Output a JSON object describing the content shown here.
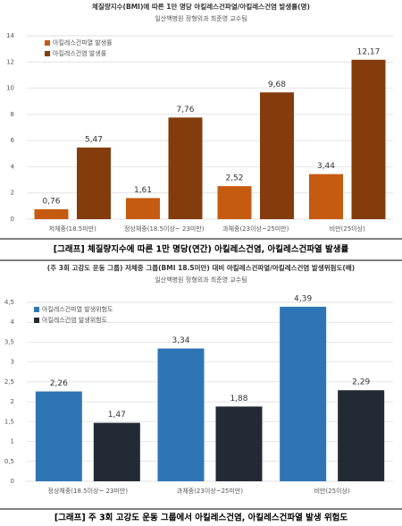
{
  "chart_data": [
    {
      "type": "bar",
      "title": "체질량지수(BMI)에 따른 1만 명당 아킬레스건파열/아킬레스건염 발생률(명)",
      "subtitle": "일산백병원 정형외과 최준영 교수팀",
      "categories": [
        "저체중(18.5미만)",
        "정상체중(18.5이상~ 23미만)",
        "과체중(23이상~25미만)",
        "비만(25이상)"
      ],
      "series": [
        {
          "name": "아킬레스건파열 발생률",
          "color": "#c55a11",
          "values": [
            0.76,
            1.61,
            2.52,
            3.44
          ],
          "value_labels": [
            "0,76",
            "1,61",
            "2,52",
            "3,44"
          ]
        },
        {
          "name": "아킬레스건염 발생률",
          "color": "#843c0c",
          "values": [
            5.47,
            7.76,
            9.68,
            12.17
          ],
          "value_labels": [
            "5,47",
            "7,76",
            "9,68",
            "12,17"
          ]
        }
      ],
      "ylim": [
        0,
        14
      ],
      "yticks": [
        0,
        2,
        4,
        6,
        8,
        10,
        12,
        14
      ],
      "grid": true,
      "legend": "top-left",
      "caption": "[그래프] 체질량지수에 따른 1만 명당(연간) 아킬레스건염, 아킬레스건파열 발생률"
    },
    {
      "type": "bar",
      "title": "(주 3회 고강도 운동 그룹) 저체중 그룹(BMI 18.5미만) 대비 아킬레스건파열/아킬레스건염 발생위험도(배)",
      "subtitle": "일산백병원 정형외과 최준영 교수팀",
      "categories": [
        "정상체중(18.5이상~ 23미만)",
        "과체중(23이상~25미만)",
        "비만(25이상)"
      ],
      "series": [
        {
          "name": "아킬레스건파열 발생위험도",
          "color": "#2e75b6",
          "values": [
            2.26,
            3.34,
            4.39
          ],
          "value_labels": [
            "2,26",
            "3,34",
            "4,39"
          ]
        },
        {
          "name": "아킬레스건염 발생위험도",
          "color": "#222a35",
          "values": [
            1.47,
            1.88,
            2.29
          ],
          "value_labels": [
            "1,47",
            "1,88",
            "2,29"
          ]
        }
      ],
      "ylim": [
        0,
        4.5
      ],
      "yticks": [
        0,
        {
          "value": 0.5,
          "label": "0,5"
        },
        1,
        {
          "value": 1.5,
          "label": "1,5"
        },
        2,
        {
          "value": 2.5,
          "label": "2,5"
        },
        3,
        {
          "value": 3.5,
          "label": "3,5"
        },
        4,
        {
          "value": 4.5,
          "label": "4,5"
        }
      ],
      "grid": true,
      "legend": "top-left",
      "caption": "[그래프] 주 3회 고강도 운동 그룹에서 아킬레스건염, 아킬레스건파열 발생 위험도"
    }
  ]
}
